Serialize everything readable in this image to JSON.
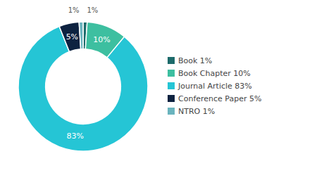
{
  "chart_data": {
    "type": "pie",
    "categories": [
      "Book 1%",
      "Book Chapter 10%",
      "Journal Article 83%",
      "Conference Paper 5%",
      "NTRO 1%"
    ],
    "values": [
      1,
      10,
      83,
      5,
      1
    ],
    "value_labels": [
      "1%",
      "10%",
      "83%",
      "5%",
      "1%"
    ],
    "colors": [
      "#1d6b6b",
      "#3dbfa0",
      "#25c5d5",
      "#0d2240",
      "#6ab4be"
    ],
    "data_labels": true,
    "legend": "right"
  }
}
